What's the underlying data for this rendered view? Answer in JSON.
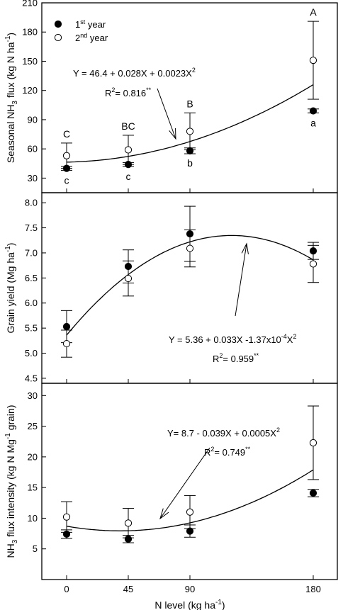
{
  "chart_data": [
    {
      "type": "scatter",
      "id": "p1",
      "ylabel": {
        "main": "Seasonal NH",
        "sub": "3",
        "mid": " flux (kg N ha",
        "sup": "-1",
        "end": ")"
      },
      "ylim": [
        15,
        210
      ],
      "yticks": [
        30,
        60,
        90,
        120,
        150,
        180,
        210
      ],
      "series": [
        {
          "name": "1st year",
          "fill": "#000000",
          "values": [
            40,
            44,
            58,
            99
          ],
          "err": [
            2,
            2,
            3,
            2
          ]
        },
        {
          "name": "2nd year",
          "fill": "#ffffff",
          "values": [
            53,
            59,
            78,
            151
          ],
          "err": [
            13,
            15,
            19,
            40
          ]
        }
      ],
      "fit": {
        "a": 46.4,
        "b": 0.028,
        "c": 0.0023
      },
      "equation": {
        "t1": "Y = 46.4 + 0.028X + 0.0023X",
        "sup1": "2"
      },
      "r2": {
        "t1": "R",
        "sup1": "2",
        "t2": "= 0.816",
        "sup2": "**"
      },
      "letters_top": [
        "C",
        "BC",
        "B",
        "A"
      ],
      "letters_bottom": [
        "c",
        "c",
        "b",
        "a"
      ]
    },
    {
      "type": "scatter",
      "id": "p2",
      "ylabel": {
        "main": "Grain yield (Mg ha",
        "sup": "-1",
        "end": ")"
      },
      "ylim": [
        4.4,
        8.2
      ],
      "yticks": [
        4.5,
        5.0,
        5.5,
        6.0,
        6.5,
        7.0,
        7.5,
        8.0
      ],
      "series": [
        {
          "name": "1st year",
          "fill": "#000000",
          "values": [
            5.53,
            6.73,
            7.38,
            7.04
          ],
          "err": [
            0.32,
            0.33,
            0.55,
            0.17
          ]
        },
        {
          "name": "2nd year",
          "fill": "#ffffff",
          "values": [
            5.19,
            6.49,
            7.09,
            6.78
          ],
          "err": [
            0.27,
            0.35,
            0.37,
            0.37
          ]
        }
      ],
      "fit": {
        "a": 5.36,
        "b": 0.033,
        "c": -0.000137
      },
      "equation": {
        "t1": "Y = 5.36 + 0.033X -1.37x10",
        "sup1": "-4",
        "t2": "X",
        "sup2": "2"
      },
      "r2": {
        "t1": "R",
        "sup1": "2",
        "t2": "= 0.959",
        "sup2": "**"
      }
    },
    {
      "type": "scatter",
      "id": "p3",
      "ylabel": {
        "main": "NH",
        "sub": "3",
        "mid": " flux intensity (kg N Mg",
        "sup": "-1",
        "end": " grain)"
      },
      "ylim": [
        0,
        32
      ],
      "yticks": [
        5,
        10,
        15,
        20,
        25,
        30
      ],
      "series": [
        {
          "name": "1st year",
          "fill": "#000000",
          "values": [
            7.4,
            6.6,
            7.9,
            14.1
          ],
          "err": [
            0.7,
            0.6,
            1.0,
            0.6
          ]
        },
        {
          "name": "2nd year",
          "fill": "#ffffff",
          "values": [
            10.2,
            9.2,
            11.0,
            22.3
          ],
          "err": [
            2.5,
            2.4,
            2.7,
            6.0
          ]
        }
      ],
      "fit": {
        "a": 8.7,
        "b": -0.039,
        "c": 0.0005
      },
      "equation": {
        "t1": "Y= 8.7 - 0.039X + 0.0005X",
        "sup1": "2"
      },
      "r2": {
        "t1": "R",
        "sup1": "2",
        "t2": "= 0.749",
        "sup2": "**"
      }
    }
  ],
  "x_categories": [
    "0",
    "45",
    "90",
    "180"
  ],
  "x_values": [
    0,
    45,
    90,
    180
  ],
  "xlabel": {
    "main": "N level (kg ha",
    "sup": "-1",
    "end": ")"
  },
  "legend": [
    {
      "base": "1",
      "sup": "st",
      "rest": " year"
    },
    {
      "base": "2",
      "sup": "nd",
      "rest": " year"
    }
  ]
}
